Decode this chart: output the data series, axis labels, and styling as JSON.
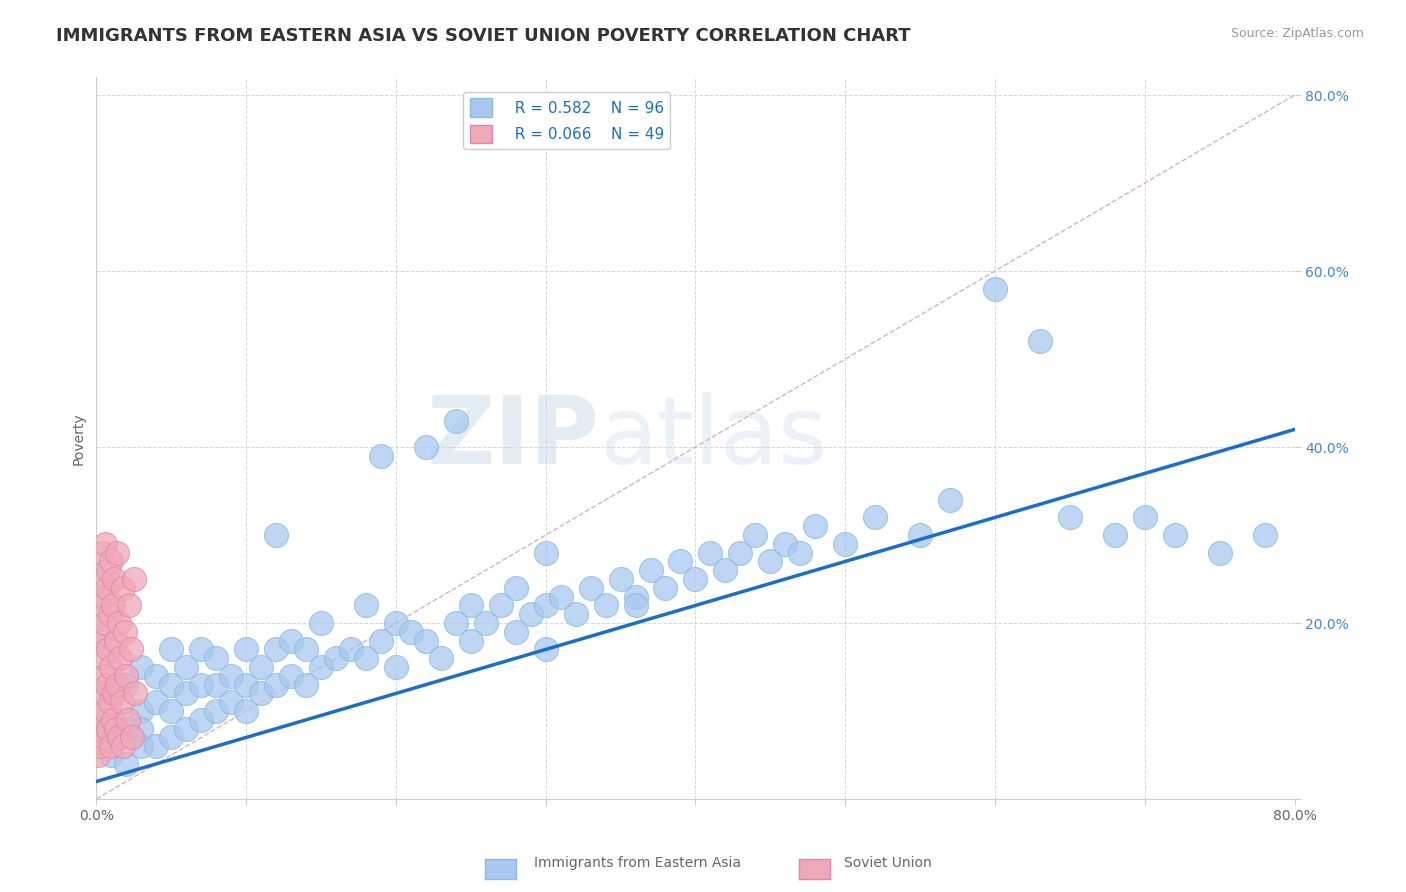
{
  "title": "IMMIGRANTS FROM EASTERN ASIA VS SOVIET UNION POVERTY CORRELATION CHART",
  "source_text": "Source: ZipAtlas.com",
  "ylabel": "Poverty",
  "xlim": [
    0.0,
    0.8
  ],
  "ylim": [
    0.0,
    0.82
  ],
  "xticklabels": [
    "0.0%",
    "",
    "",
    "",
    "",
    "",
    "",
    "",
    "80.0%"
  ],
  "yticklabels": [
    "",
    "20.0%",
    "40.0%",
    "60.0%",
    "80.0%"
  ],
  "legend_r1": "R = 0.582",
  "legend_n1": "N = 96",
  "legend_r2": "R = 0.066",
  "legend_n2": "N = 49",
  "color_eastern_asia": "#a8c8f0",
  "color_soviet": "#f0a8b8",
  "color_regression_line": "#1a6fcc",
  "color_diagonal": "#d8a8b8",
  "watermark_zip": "ZIP",
  "watermark_atlas": "atlas",
  "background_color": "#ffffff",
  "grid_color": "#d0d8e8",
  "title_fontsize": 13,
  "axis_label_fontsize": 10,
  "tick_fontsize": 10,
  "legend_fontsize": 11,
  "eastern_asia_x": [
    0.01,
    0.01,
    0.02,
    0.02,
    0.02,
    0.03,
    0.03,
    0.03,
    0.03,
    0.04,
    0.04,
    0.04,
    0.05,
    0.05,
    0.05,
    0.05,
    0.06,
    0.06,
    0.06,
    0.07,
    0.07,
    0.07,
    0.08,
    0.08,
    0.08,
    0.09,
    0.09,
    0.1,
    0.1,
    0.1,
    0.11,
    0.11,
    0.12,
    0.12,
    0.13,
    0.13,
    0.14,
    0.14,
    0.15,
    0.15,
    0.16,
    0.17,
    0.18,
    0.18,
    0.19,
    0.2,
    0.2,
    0.21,
    0.22,
    0.23,
    0.24,
    0.25,
    0.25,
    0.26,
    0.27,
    0.28,
    0.28,
    0.29,
    0.3,
    0.3,
    0.31,
    0.32,
    0.33,
    0.34,
    0.35,
    0.36,
    0.37,
    0.38,
    0.39,
    0.4,
    0.41,
    0.42,
    0.43,
    0.44,
    0.45,
    0.46,
    0.47,
    0.48,
    0.5,
    0.52,
    0.55,
    0.57,
    0.6,
    0.63,
    0.65,
    0.68,
    0.7,
    0.72,
    0.75,
    0.78,
    0.22,
    0.24,
    0.3,
    0.36,
    0.19,
    0.12
  ],
  "eastern_asia_y": [
    0.05,
    0.12,
    0.04,
    0.08,
    0.13,
    0.06,
    0.1,
    0.15,
    0.08,
    0.06,
    0.11,
    0.14,
    0.07,
    0.1,
    0.13,
    0.17,
    0.08,
    0.12,
    0.15,
    0.09,
    0.13,
    0.17,
    0.1,
    0.13,
    0.16,
    0.11,
    0.14,
    0.1,
    0.13,
    0.17,
    0.12,
    0.15,
    0.13,
    0.17,
    0.14,
    0.18,
    0.13,
    0.17,
    0.15,
    0.2,
    0.16,
    0.17,
    0.16,
    0.22,
    0.18,
    0.15,
    0.2,
    0.19,
    0.18,
    0.16,
    0.2,
    0.18,
    0.22,
    0.2,
    0.22,
    0.19,
    0.24,
    0.21,
    0.22,
    0.17,
    0.23,
    0.21,
    0.24,
    0.22,
    0.25,
    0.23,
    0.26,
    0.24,
    0.27,
    0.25,
    0.28,
    0.26,
    0.28,
    0.3,
    0.27,
    0.29,
    0.28,
    0.31,
    0.29,
    0.32,
    0.3,
    0.34,
    0.58,
    0.52,
    0.32,
    0.3,
    0.32,
    0.3,
    0.28,
    0.3,
    0.4,
    0.43,
    0.28,
    0.22,
    0.39,
    0.3
  ],
  "soviet_x": [
    0.001,
    0.001,
    0.002,
    0.002,
    0.002,
    0.003,
    0.003,
    0.003,
    0.004,
    0.004,
    0.004,
    0.005,
    0.005,
    0.005,
    0.006,
    0.006,
    0.006,
    0.007,
    0.007,
    0.008,
    0.008,
    0.008,
    0.009,
    0.009,
    0.01,
    0.01,
    0.01,
    0.011,
    0.011,
    0.012,
    0.012,
    0.013,
    0.013,
    0.014,
    0.014,
    0.015,
    0.015,
    0.016,
    0.017,
    0.018,
    0.018,
    0.019,
    0.02,
    0.021,
    0.022,
    0.023,
    0.024,
    0.025,
    0.026
  ],
  "soviet_y": [
    0.05,
    0.18,
    0.08,
    0.22,
    0.12,
    0.06,
    0.16,
    0.25,
    0.09,
    0.19,
    0.28,
    0.07,
    0.14,
    0.23,
    0.1,
    0.2,
    0.29,
    0.13,
    0.24,
    0.08,
    0.17,
    0.26,
    0.11,
    0.21,
    0.06,
    0.15,
    0.27,
    0.09,
    0.22,
    0.12,
    0.25,
    0.08,
    0.18,
    0.13,
    0.28,
    0.07,
    0.2,
    0.16,
    0.11,
    0.24,
    0.06,
    0.19,
    0.14,
    0.09,
    0.22,
    0.17,
    0.07,
    0.25,
    0.12
  ],
  "regression_y_start": 0.02,
  "regression_y_end": 0.42
}
